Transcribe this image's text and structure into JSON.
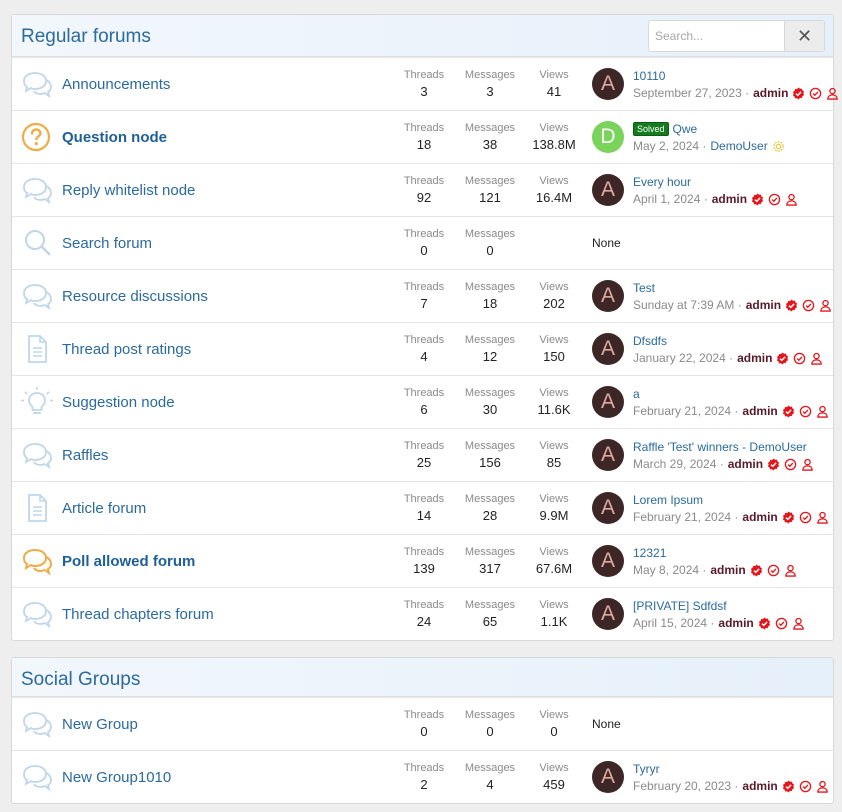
{
  "search": {
    "placeholder": "Search..."
  },
  "stat_labels": {
    "threads": "Threads",
    "messages": "Messages",
    "views": "Views"
  },
  "colors": {
    "accent": "#2b6a9e",
    "admin": "#5a1a28",
    "badge_red": "#e4161b",
    "solved": "#167a1e"
  },
  "sections": [
    {
      "title": "Regular forums",
      "nodes": [
        {
          "title": "Announcements",
          "icon": "chat-bubbles-icon",
          "threads": "3",
          "messages": "3",
          "views": "41",
          "avatar": "A",
          "last_title": "10110",
          "last_date": "September 27, 2023 ·",
          "last_user": "admin"
        },
        {
          "title": "Question node",
          "icon": "question-mark-icon",
          "threads": "18",
          "messages": "38",
          "views": "138.8M",
          "avatar": "D",
          "prefix": "Solved",
          "last_title": "Qwe",
          "last_date": "May 2, 2024 ·",
          "last_user": "DemoUser"
        },
        {
          "title": "Reply whitelist node",
          "icon": "chat-bubbles-icon",
          "threads": "92",
          "messages": "121",
          "views": "16.4M",
          "avatar": "A",
          "last_title": "Every hour",
          "last_date": "April 1, 2024 ·",
          "last_user": "admin"
        },
        {
          "title": "Search forum",
          "icon": "magnifier-icon",
          "threads": "0",
          "messages": "0",
          "none": "None"
        },
        {
          "title": "Resource discussions",
          "icon": "chat-bubbles-icon",
          "threads": "7",
          "messages": "18",
          "views": "202",
          "avatar": "A",
          "last_title": "Test",
          "last_date": "Sunday at 7:39 AM ·",
          "last_user": "admin"
        },
        {
          "title": "Thread post ratings",
          "icon": "document-icon",
          "threads": "4",
          "messages": "12",
          "views": "150",
          "avatar": "A",
          "last_title": "Dfsdfs",
          "last_date": "January 22, 2024 ·",
          "last_user": "admin"
        },
        {
          "title": "Suggestion node",
          "icon": "lightbulb-icon",
          "threads": "6",
          "messages": "30",
          "views": "11.6K",
          "avatar": "A",
          "last_title": "a",
          "last_date": "February 21, 2024 ·",
          "last_user": "admin"
        },
        {
          "title": "Raffles",
          "icon": "chat-bubbles-icon",
          "threads": "25",
          "messages": "156",
          "views": "85",
          "avatar": "A",
          "last_title": "Raffle 'Test' winners - DemoUser",
          "last_date": "March 29, 2024 ·",
          "last_user": "admin"
        },
        {
          "title": "Article forum",
          "icon": "document-icon",
          "threads": "14",
          "messages": "28",
          "views": "9.9M",
          "avatar": "A",
          "last_title": "Lorem Ipsum",
          "last_date": "February 21, 2024 ·",
          "last_user": "admin"
        },
        {
          "title": "Poll allowed forum",
          "icon": "chat-bubbles-icon",
          "threads": "139",
          "messages": "317",
          "views": "67.6M",
          "avatar": "A",
          "last_title": "12321",
          "last_date": "May 8, 2024 ·",
          "last_user": "admin"
        },
        {
          "title": "Thread chapters forum",
          "icon": "chat-bubbles-icon",
          "threads": "24",
          "messages": "65",
          "views": "1.1K",
          "avatar": "A",
          "last_title": "[PRIVATE] Sdfdsf",
          "last_date": "April 15, 2024 ·",
          "last_user": "admin"
        }
      ]
    },
    {
      "title": "Social Groups",
      "nodes": [
        {
          "title": "New Group",
          "icon": "chat-bubbles-icon",
          "threads": "0",
          "messages": "0",
          "views": "0",
          "none": "None"
        },
        {
          "title": "New Group1010",
          "icon": "chat-bubbles-icon",
          "threads": "2",
          "messages": "4",
          "views": "459",
          "avatar": "A",
          "last_title": "Tyryr",
          "last_date": "February 20, 2023 ·",
          "last_user": "admin"
        }
      ]
    }
  ]
}
